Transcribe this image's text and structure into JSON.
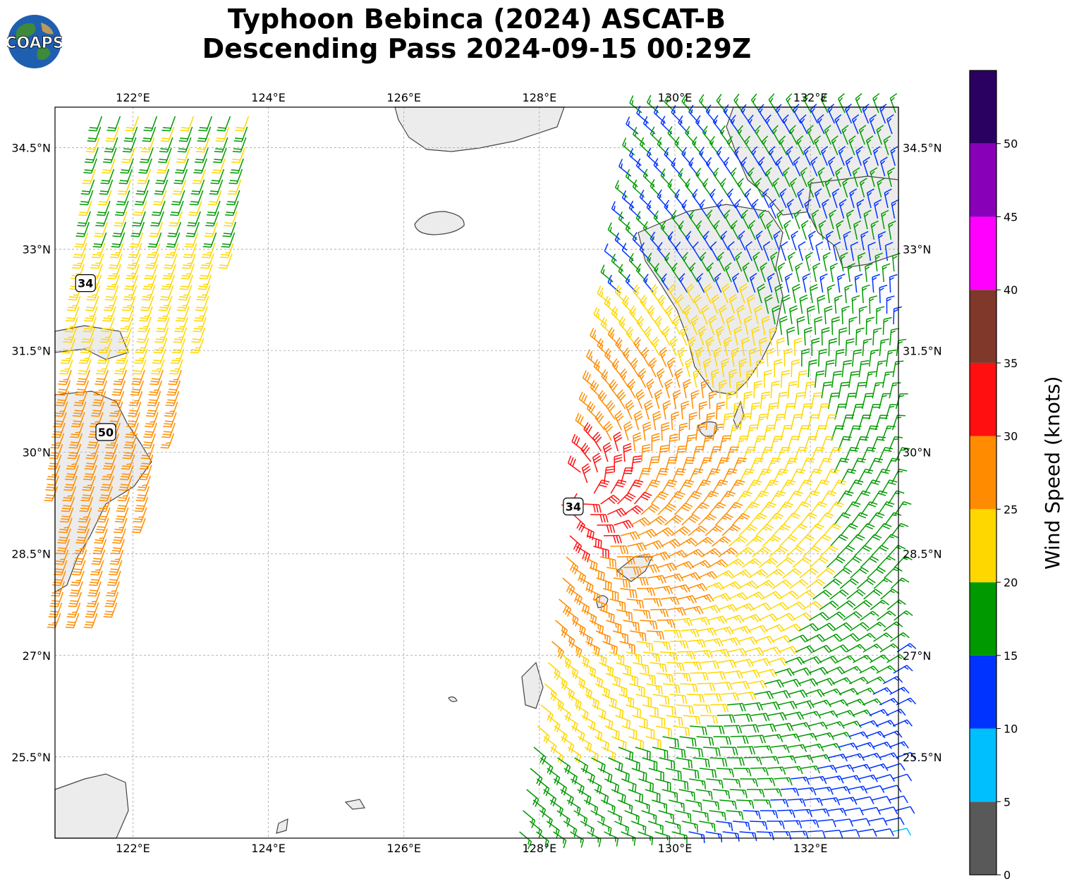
{
  "title": {
    "line1": "Typhoon Bebinca (2024) ASCAT-B",
    "line2": "Descending Pass 2024-09-15 00:29Z"
  },
  "logo": {
    "text": "COAPS",
    "icon": "globe-icon"
  },
  "map": {
    "lon_range": [
      120.85,
      133.3
    ],
    "lat_range": [
      24.3,
      35.1
    ],
    "lon_ticks": [
      122,
      124,
      126,
      128,
      130,
      132
    ],
    "lon_tick_labels": [
      "122°E",
      "124°E",
      "126°E",
      "128°E",
      "130°E",
      "132°E"
    ],
    "lat_ticks": [
      25.5,
      27,
      28.5,
      30,
      31.5,
      33,
      34.5
    ],
    "lat_tick_labels": [
      "25.5°N",
      "27°N",
      "28.5°N",
      "30°N",
      "31.5°N",
      "33°N",
      "34.5°N"
    ],
    "grid": true,
    "wind_radii_labels": [
      {
        "text": "34",
        "lon": 121.3,
        "lat": 32.5
      },
      {
        "text": "50",
        "lon": 121.6,
        "lat": 30.3
      },
      {
        "text": "34",
        "lon": 128.5,
        "lat": 29.2
      }
    ]
  },
  "colorbar": {
    "label": "Wind Speed (knots)",
    "ticks": [
      "0",
      "5",
      "10",
      "15",
      "20",
      "25",
      "30",
      "35",
      "40",
      "45",
      "50"
    ],
    "bins": [
      {
        "min": 0,
        "max": 5,
        "color": "#595959"
      },
      {
        "min": 5,
        "max": 10,
        "color": "#00bfff"
      },
      {
        "min": 10,
        "max": 15,
        "color": "#0033ff"
      },
      {
        "min": 15,
        "max": 20,
        "color": "#009900"
      },
      {
        "min": 20,
        "max": 25,
        "color": "#ffd700"
      },
      {
        "min": 25,
        "max": 30,
        "color": "#ff8c00"
      },
      {
        "min": 30,
        "max": 35,
        "color": "#ff0f0f"
      },
      {
        "min": 35,
        "max": 40,
        "color": "#80382a"
      },
      {
        "min": 40,
        "max": 45,
        "color": "#ff00ff"
      },
      {
        "min": 45,
        "max": 50,
        "color": "#8800b8"
      },
      {
        "min": 50,
        "max": 55,
        "color": "#2a0060"
      }
    ]
  }
}
